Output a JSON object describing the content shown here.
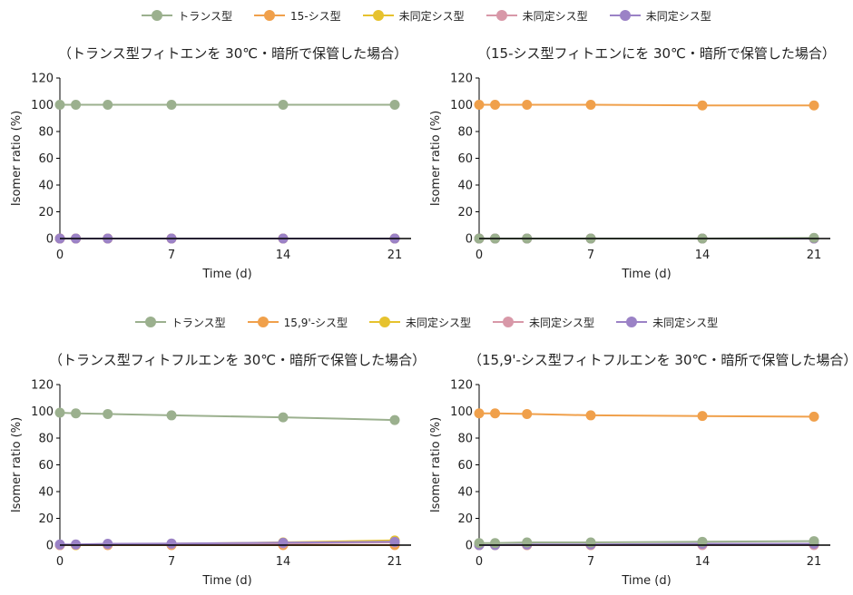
{
  "top_legend": [
    {
      "label": "トランス型",
      "color": "#9bb08e"
    },
    {
      "label": "15-シス型",
      "color": "#f0a04b"
    },
    {
      "label": "未同定シス型",
      "color": "#e6c22e"
    },
    {
      "label": "未同定シス型",
      "color": "#d898a8"
    },
    {
      "label": "未同定シス型",
      "color": "#9b82c6"
    }
  ],
  "bottom_legend": [
    {
      "label": "トランス型",
      "color": "#9bb08e"
    },
    {
      "label": "15,9'-シス型",
      "color": "#f0a04b"
    },
    {
      "label": "未同定シス型",
      "color": "#e6c22e"
    },
    {
      "label": "未同定シス型",
      "color": "#d898a8"
    },
    {
      "label": "未同定シス型",
      "color": "#9b82c6"
    }
  ],
  "chart_data": [
    {
      "type": "line",
      "title": "（トランス型フィトエンを 30℃・暗所で保管した場合）",
      "xlabel": "Time (d)",
      "ylabel": "Isomer ratio (%)",
      "x": [
        0,
        1,
        3,
        7,
        14,
        21
      ],
      "xticks": [
        "0",
        "7",
        "14",
        "21"
      ],
      "yticks": [
        "0",
        "20",
        "40",
        "60",
        "80",
        "100",
        "120"
      ],
      "xlim": [
        0,
        21
      ],
      "ylim": [
        0,
        120
      ],
      "series": [
        {
          "name": "トランス型",
          "color": "#9bb08e",
          "values": [
            100,
            100,
            100,
            100,
            100,
            100
          ]
        },
        {
          "name": "15-シス型",
          "color": "#f0a04b",
          "values": [
            0,
            0,
            0,
            0,
            0,
            0
          ]
        },
        {
          "name": "未同定シス型",
          "color": "#e6c22e",
          "values": [
            0,
            0,
            0,
            0,
            0,
            0
          ]
        },
        {
          "name": "未同定シス型",
          "color": "#d898a8",
          "values": [
            0,
            0,
            0,
            0,
            0,
            0
          ]
        },
        {
          "name": "未同定シス型",
          "color": "#9b82c6",
          "values": [
            0,
            0,
            0,
            0,
            0,
            0
          ]
        }
      ]
    },
    {
      "type": "line",
      "title": "（15-シス型フィトエンにを 30℃・暗所で保管した場合）",
      "xlabel": "Time (d)",
      "ylabel": "Isomer ratio (%)",
      "x": [
        0,
        1,
        3,
        7,
        14,
        21
      ],
      "xticks": [
        "0",
        "7",
        "14",
        "21"
      ],
      "yticks": [
        "0",
        "20",
        "40",
        "60",
        "80",
        "100",
        "120"
      ],
      "xlim": [
        0,
        21
      ],
      "ylim": [
        0,
        120
      ],
      "series": [
        {
          "name": "15-シス型",
          "color": "#f0a04b",
          "values": [
            100,
            100,
            100,
            100,
            99.5,
            99.5
          ]
        },
        {
          "name": "未同定シス型",
          "color": "#e6c22e",
          "values": [
            0,
            0,
            0,
            0,
            0,
            0
          ]
        },
        {
          "name": "未同定シス型",
          "color": "#d898a8",
          "values": [
            0,
            0,
            0,
            0,
            0,
            0
          ]
        },
        {
          "name": "未同定シス型",
          "color": "#9b82c6",
          "values": [
            0,
            0,
            0,
            0,
            0,
            0
          ]
        },
        {
          "name": "トランス型",
          "color": "#9bb08e",
          "values": [
            0,
            0,
            0,
            0,
            0,
            0.5
          ]
        }
      ]
    },
    {
      "type": "line",
      "title": "（トランス型フィトフルエンを 30℃・暗所で保管した場合）",
      "xlabel": "Time (d)",
      "ylabel": "Isomer ratio (%)",
      "x": [
        0,
        1,
        3,
        7,
        14,
        21
      ],
      "xticks": [
        "0",
        "7",
        "14",
        "21"
      ],
      "yticks": [
        "0",
        "20",
        "40",
        "60",
        "80",
        "100",
        "120"
      ],
      "xlim": [
        0,
        21
      ],
      "ylim": [
        0,
        120
      ],
      "series": [
        {
          "name": "トランス型",
          "color": "#9bb08e",
          "values": [
            99,
            98.5,
            98,
            97,
            95.5,
            93.5
          ]
        },
        {
          "name": "15,9'-シス型",
          "color": "#f0a04b",
          "values": [
            0,
            0,
            0,
            0,
            0,
            0
          ]
        },
        {
          "name": "未同定シス型",
          "color": "#e6c22e",
          "values": [
            0,
            0,
            0.5,
            1,
            2,
            3.5
          ]
        },
        {
          "name": "未同定シス型",
          "color": "#d898a8",
          "values": [
            0,
            0.3,
            0.5,
            0.8,
            1.2,
            2
          ]
        },
        {
          "name": "未同定シス型",
          "color": "#9b82c6",
          "values": [
            0.5,
            0.5,
            1,
            1.2,
            1.8,
            2.5
          ]
        }
      ]
    },
    {
      "type": "line",
      "title": "（15,9'-シス型フィトフルエンを 30℃・暗所で保管した場合）",
      "xlabel": "Time (d)",
      "ylabel": "Isomer ratio (%)",
      "x": [
        0,
        1,
        3,
        7,
        14,
        21
      ],
      "xticks": [
        "0",
        "7",
        "14",
        "21"
      ],
      "yticks": [
        "0",
        "20",
        "40",
        "60",
        "80",
        "100",
        "120"
      ],
      "xlim": [
        0,
        21
      ],
      "ylim": [
        0,
        120
      ],
      "series": [
        {
          "name": "15,9'-シス型",
          "color": "#f0a04b",
          "values": [
            98.5,
            98.5,
            98,
            97,
            96.5,
            96
          ]
        },
        {
          "name": "未同定シス型",
          "color": "#e6c22e",
          "values": [
            0,
            0,
            0,
            0,
            0.5,
            0.5
          ]
        },
        {
          "name": "未同定シス型",
          "color": "#d898a8",
          "values": [
            0,
            0,
            0,
            0,
            0,
            0
          ]
        },
        {
          "name": "未同定シス型",
          "color": "#9b82c6",
          "values": [
            0,
            0,
            0.5,
            0.5,
            1,
            1
          ]
        },
        {
          "name": "トランス型",
          "color": "#9bb08e",
          "values": [
            1.5,
            1.5,
            2,
            2,
            2.5,
            3
          ]
        }
      ]
    }
  ]
}
